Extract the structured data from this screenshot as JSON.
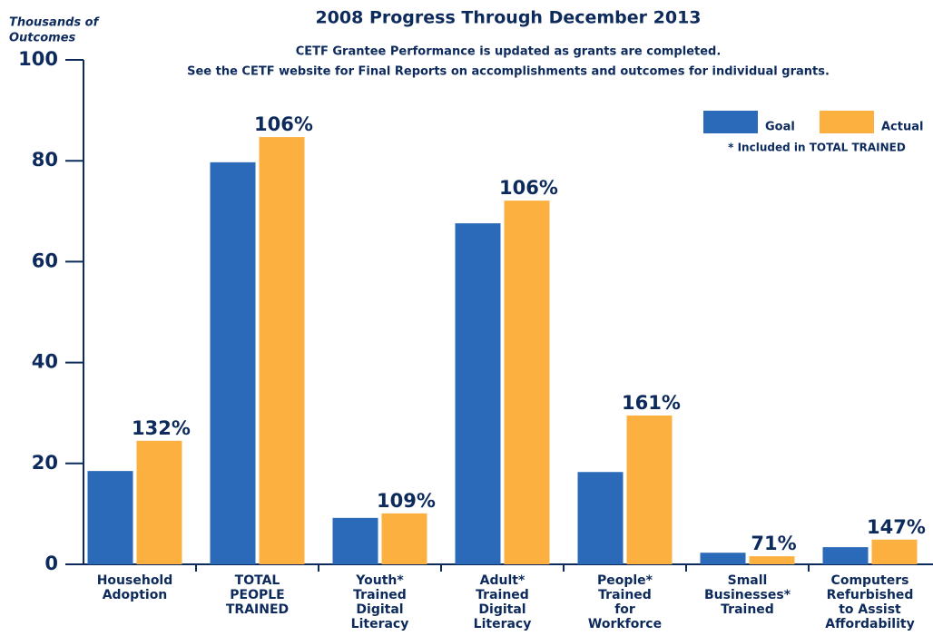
{
  "chart_data": {
    "type": "bar",
    "title": "2008 Progress Through December 2013",
    "subtitle": [
      "CETF Grantee Performance is updated as grants are completed.",
      "See the CETF website for Final Reports on accomplishments and outcomes for individual grants."
    ],
    "y_label": [
      "Thousands of",
      "Outcomes"
    ],
    "categories": [
      [
        "Household",
        "Adoption"
      ],
      [
        "TOTAL",
        "PEOPLE",
        "TRAINED"
      ],
      [
        "Youth*",
        "Trained",
        "Digital",
        "Literacy"
      ],
      [
        "Adult*",
        "Trained",
        "Digital",
        "Literacy"
      ],
      [
        "People*",
        "Trained",
        "for",
        "Workforce"
      ],
      [
        "Small",
        "Businesses*",
        "Trained"
      ],
      [
        "Computers",
        "Refurbished",
        "to Assist",
        "Affordability"
      ]
    ],
    "series": [
      {
        "name": "Goal",
        "color": "#2a6ab8",
        "values": [
          18.5,
          79.7,
          9.2,
          67.6,
          18.3,
          2.3,
          3.4
        ]
      },
      {
        "name": "Actual",
        "color": "#fbb040",
        "values": [
          24.5,
          84.7,
          10.1,
          72.1,
          29.5,
          1.6,
          4.9
        ]
      }
    ],
    "annotations": [
      "132%",
      "106%",
      "109%",
      "106%",
      "161%",
      "71%",
      "147%"
    ],
    "note": "* Included in TOTAL TRAINED",
    "ylim": [
      0,
      100
    ],
    "yticks": [
      0,
      20,
      40,
      60,
      80,
      100
    ],
    "legend": "top-right"
  }
}
